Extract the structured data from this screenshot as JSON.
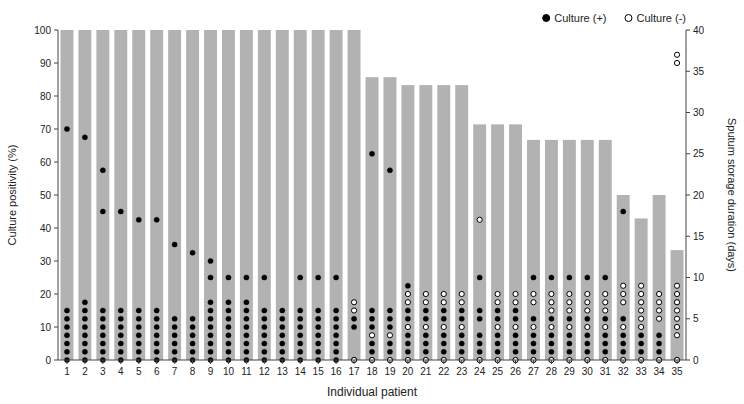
{
  "chart_data": {
    "type": "bar",
    "xlabel": "Individual patient",
    "ylabel": "Culture positivity (%)",
    "y2label": "Sputum storage duration (days)",
    "categories": [
      1,
      2,
      3,
      4,
      5,
      6,
      7,
      8,
      9,
      10,
      11,
      12,
      13,
      14,
      15,
      16,
      17,
      18,
      19,
      20,
      21,
      22,
      23,
      24,
      25,
      26,
      27,
      28,
      29,
      30,
      31,
      32,
      33,
      34,
      35
    ],
    "ylim": [
      0,
      100
    ],
    "yticks": [
      0,
      10,
      20,
      30,
      40,
      50,
      60,
      70,
      80,
      90,
      100
    ],
    "y2lim": [
      0,
      40
    ],
    "y2ticks": [
      0,
      5,
      10,
      15,
      20,
      25,
      30,
      35,
      40
    ],
    "grid": false,
    "legend": "upper right",
    "series": [
      {
        "type": "bar",
        "color": "#b2b2b2",
        "values": [
          100,
          100,
          100,
          100,
          100,
          100,
          100,
          100,
          100,
          100,
          100,
          100,
          100,
          100,
          100,
          100,
          100,
          85.7,
          85.7,
          83.3,
          83.3,
          83.3,
          83.3,
          71.4,
          71.4,
          71.4,
          66.7,
          66.7,
          66.7,
          66.7,
          66.7,
          50.0,
          42.9,
          50.0,
          33.3
        ]
      },
      {
        "name": "Culture (+)",
        "type": "scatter",
        "axis": "y2",
        "color": "#000000",
        "marker": "circle",
        "x": [
          1,
          1,
          1,
          1,
          1,
          1,
          1,
          1,
          2,
          2,
          2,
          2,
          2,
          2,
          2,
          2,
          2,
          3,
          3,
          3,
          3,
          3,
          3,
          3,
          3,
          3,
          4,
          4,
          4,
          4,
          4,
          4,
          4,
          4,
          5,
          5,
          5,
          5,
          5,
          5,
          5,
          5,
          6,
          6,
          6,
          6,
          6,
          6,
          6,
          6,
          7,
          7,
          7,
          7,
          7,
          7,
          7,
          8,
          8,
          8,
          8,
          8,
          8,
          8,
          9,
          9,
          9,
          9,
          9,
          9,
          9,
          9,
          9,
          9,
          10,
          10,
          10,
          10,
          10,
          10,
          10,
          10,
          10,
          11,
          11,
          11,
          11,
          11,
          11,
          11,
          11,
          11,
          12,
          12,
          12,
          12,
          12,
          12,
          12,
          12,
          13,
          13,
          13,
          13,
          13,
          13,
          13,
          14,
          14,
          14,
          14,
          14,
          14,
          14,
          14,
          15,
          15,
          15,
          15,
          15,
          15,
          15,
          15,
          16,
          16,
          16,
          16,
          16,
          16,
          16,
          16,
          17,
          17,
          17,
          18,
          18,
          18,
          18,
          18,
          18,
          18,
          19,
          19,
          19,
          19,
          19,
          19,
          19,
          20,
          20,
          20,
          20,
          20,
          20,
          20,
          21,
          21,
          21,
          21,
          21,
          21,
          22,
          22,
          22,
          22,
          22,
          22,
          23,
          23,
          23,
          23,
          23,
          23,
          24,
          24,
          24,
          24,
          24,
          24,
          24,
          25,
          25,
          25,
          25,
          25,
          25,
          26,
          26,
          26,
          26,
          26,
          26,
          27,
          27,
          27,
          27,
          27,
          27,
          28,
          28,
          28,
          28,
          28,
          28,
          29,
          29,
          29,
          29,
          29,
          29,
          30,
          30,
          30,
          30,
          30,
          30,
          31,
          31,
          31,
          31,
          31,
          31,
          32,
          32,
          32,
          32,
          32,
          32,
          33,
          33,
          33,
          33,
          34,
          34,
          34,
          34,
          35,
          35
        ],
        "values": [
          0,
          1,
          2,
          3,
          4,
          5,
          6,
          28,
          0,
          1,
          2,
          3,
          4,
          5,
          6,
          7,
          27,
          0,
          1,
          2,
          3,
          4,
          5,
          6,
          18,
          23,
          0,
          1,
          2,
          3,
          4,
          5,
          6,
          18,
          0,
          1,
          2,
          3,
          4,
          5,
          6,
          17,
          0,
          1,
          2,
          3,
          4,
          5,
          6,
          17,
          0,
          1,
          2,
          3,
          4,
          5,
          14,
          0,
          1,
          2,
          3,
          4,
          5,
          13,
          0,
          1,
          2,
          3,
          4,
          5,
          6,
          7,
          10,
          12,
          0,
          1,
          2,
          3,
          4,
          5,
          6,
          7,
          10,
          0,
          1,
          2,
          3,
          4,
          5,
          6,
          7,
          10,
          0,
          1,
          2,
          3,
          4,
          5,
          6,
          10,
          0,
          1,
          2,
          3,
          4,
          5,
          6,
          0,
          1,
          2,
          3,
          4,
          5,
          6,
          10,
          0,
          1,
          2,
          3,
          4,
          5,
          6,
          10,
          0,
          1,
          2,
          3,
          4,
          5,
          6,
          10,
          0,
          4,
          5,
          0,
          1,
          2,
          4,
          5,
          6,
          25,
          0,
          1,
          2,
          4,
          5,
          6,
          23,
          0,
          1,
          2,
          3,
          5,
          6,
          9,
          0,
          1,
          2,
          3,
          5,
          6,
          0,
          1,
          2,
          3,
          5,
          6,
          0,
          1,
          2,
          3,
          5,
          6,
          0,
          1,
          2,
          3,
          5,
          6,
          10,
          0,
          1,
          2,
          3,
          5,
          6,
          0,
          1,
          2,
          3,
          5,
          6,
          0,
          1,
          2,
          3,
          5,
          10,
          0,
          1,
          2,
          3,
          5,
          10,
          0,
          1,
          2,
          3,
          5,
          10,
          0,
          1,
          2,
          3,
          5,
          10,
          0,
          1,
          2,
          3,
          5,
          10,
          0,
          1,
          2,
          3,
          5,
          18,
          0,
          1,
          2,
          3,
          0,
          1,
          2,
          3,
          0,
          7
        ]
      },
      {
        "name": "Culture (-)",
        "type": "scatter",
        "axis": "y2",
        "color": "#000000",
        "marker": "circle-open",
        "x": [
          17,
          17,
          17,
          18,
          18,
          19,
          19,
          20,
          20,
          20,
          20,
          21,
          21,
          21,
          21,
          22,
          22,
          22,
          22,
          23,
          23,
          23,
          23,
          24,
          24,
          25,
          25,
          25,
          25,
          26,
          26,
          26,
          26,
          27,
          27,
          27,
          27,
          28,
          28,
          28,
          28,
          28,
          29,
          29,
          29,
          29,
          29,
          30,
          30,
          30,
          30,
          30,
          31,
          31,
          31,
          31,
          31,
          32,
          32,
          32,
          32,
          32,
          33,
          33,
          33,
          33,
          33,
          33,
          33,
          34,
          34,
          34,
          34,
          34,
          35,
          35,
          35,
          35,
          35,
          35,
          35,
          35,
          35,
          35
        ],
        "values": [
          0,
          6,
          7,
          0,
          3,
          0,
          3,
          0,
          4,
          7,
          8,
          0,
          4,
          7,
          8,
          0,
          4,
          7,
          8,
          0,
          4,
          7,
          8,
          0,
          17,
          0,
          4,
          7,
          8,
          0,
          4,
          7,
          8,
          0,
          4,
          7,
          8,
          0,
          4,
          6,
          7,
          8,
          0,
          4,
          6,
          7,
          8,
          0,
          4,
          6,
          7,
          8,
          0,
          4,
          6,
          7,
          8,
          0,
          4,
          7,
          8,
          9,
          0,
          4,
          5,
          6,
          7,
          8,
          9,
          0,
          5,
          6,
          7,
          8,
          0,
          3,
          4,
          5,
          6,
          7,
          8,
          9,
          36,
          37
        ]
      }
    ]
  }
}
